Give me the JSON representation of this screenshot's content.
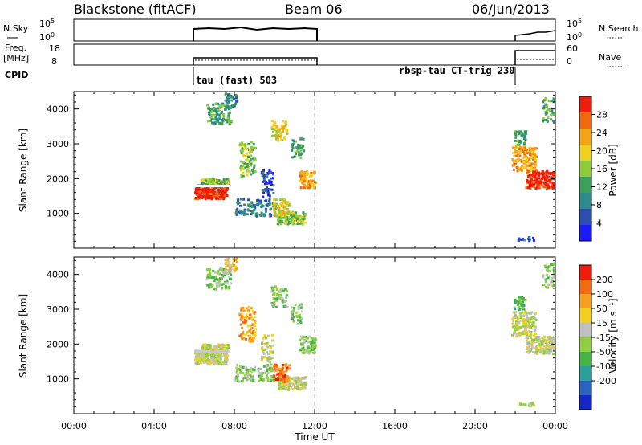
{
  "header": {
    "title": "Blackstone (fitACF)",
    "beam": "Beam 06",
    "date": "06/Jun/2013"
  },
  "top_panels": {
    "nsky_label": "N.Sky",
    "nsky_ticks": [
      "10^5",
      "10^0"
    ],
    "freq_label": "Freq.",
    "freq_unit": "[MHz]",
    "freq_ticks": [
      "18",
      "8"
    ],
    "cpid_label": "CPID",
    "nsearch_label": "N.Search",
    "nsearch_ticks": [
      "10^5",
      "10^0"
    ],
    "nave_label": "Nave",
    "nave_ticks": [
      "60",
      "0"
    ],
    "cpid_segments": [
      {
        "label": "tau (fast) 503",
        "start": "06:00",
        "end": "12:00"
      },
      {
        "label": "rbsp-tau CT-trig 230",
        "start": "21:45",
        "end": "24:00"
      }
    ]
  },
  "chart_data": [
    {
      "type": "heatmap",
      "name": "power",
      "ylabel": "Slant Range [km]",
      "yticks": [
        1000,
        2000,
        3000,
        4000
      ],
      "ylim": [
        0,
        4500
      ],
      "xlim_hours": [
        0,
        24
      ],
      "colorbar": {
        "label": "Power [dB]",
        "ticks": [
          "4",
          "8",
          "12",
          "16",
          "20",
          "24",
          "28"
        ],
        "colors": [
          "#1b1bff",
          "#2c4fb0",
          "#2f8a8a",
          "#3aa05a",
          "#8fcc3c",
          "#f0d020",
          "#f5a418",
          "#f26a10",
          "#ee1c0c"
        ]
      },
      "observation_windows_hours": [
        [
          6.0,
          12.0
        ],
        [
          21.8,
          24.0
        ]
      ]
    },
    {
      "type": "heatmap",
      "name": "velocity",
      "ylabel": "Slant Range [km]",
      "yticks": [
        1000,
        2000,
        3000,
        4000
      ],
      "ylim": [
        0,
        4500
      ],
      "xlim_hours": [
        0,
        24
      ],
      "colorbar": {
        "label": "Velocity [m s⁻¹]",
        "ticks": [
          "200",
          "100",
          "50",
          "15",
          "-15",
          "-50",
          "-100",
          "-200"
        ],
        "colors": [
          "#1428c8",
          "#2a66c0",
          "#2ba09a",
          "#46b446",
          "#90d040",
          "#c0c0c0",
          "#f2d020",
          "#f5a020",
          "#f36a10",
          "#ee1c0c"
        ]
      },
      "observation_windows_hours": [
        [
          6.0,
          12.0
        ],
        [
          21.8,
          24.0
        ]
      ]
    }
  ],
  "xaxis": {
    "ticks": [
      "00:00",
      "04:00",
      "08:00",
      "12:00",
      "16:00",
      "20:00",
      "00:00"
    ],
    "label": "Time UT"
  },
  "colors": {
    "frame": "#000000",
    "dashed_marker": "#a8a8a8"
  }
}
